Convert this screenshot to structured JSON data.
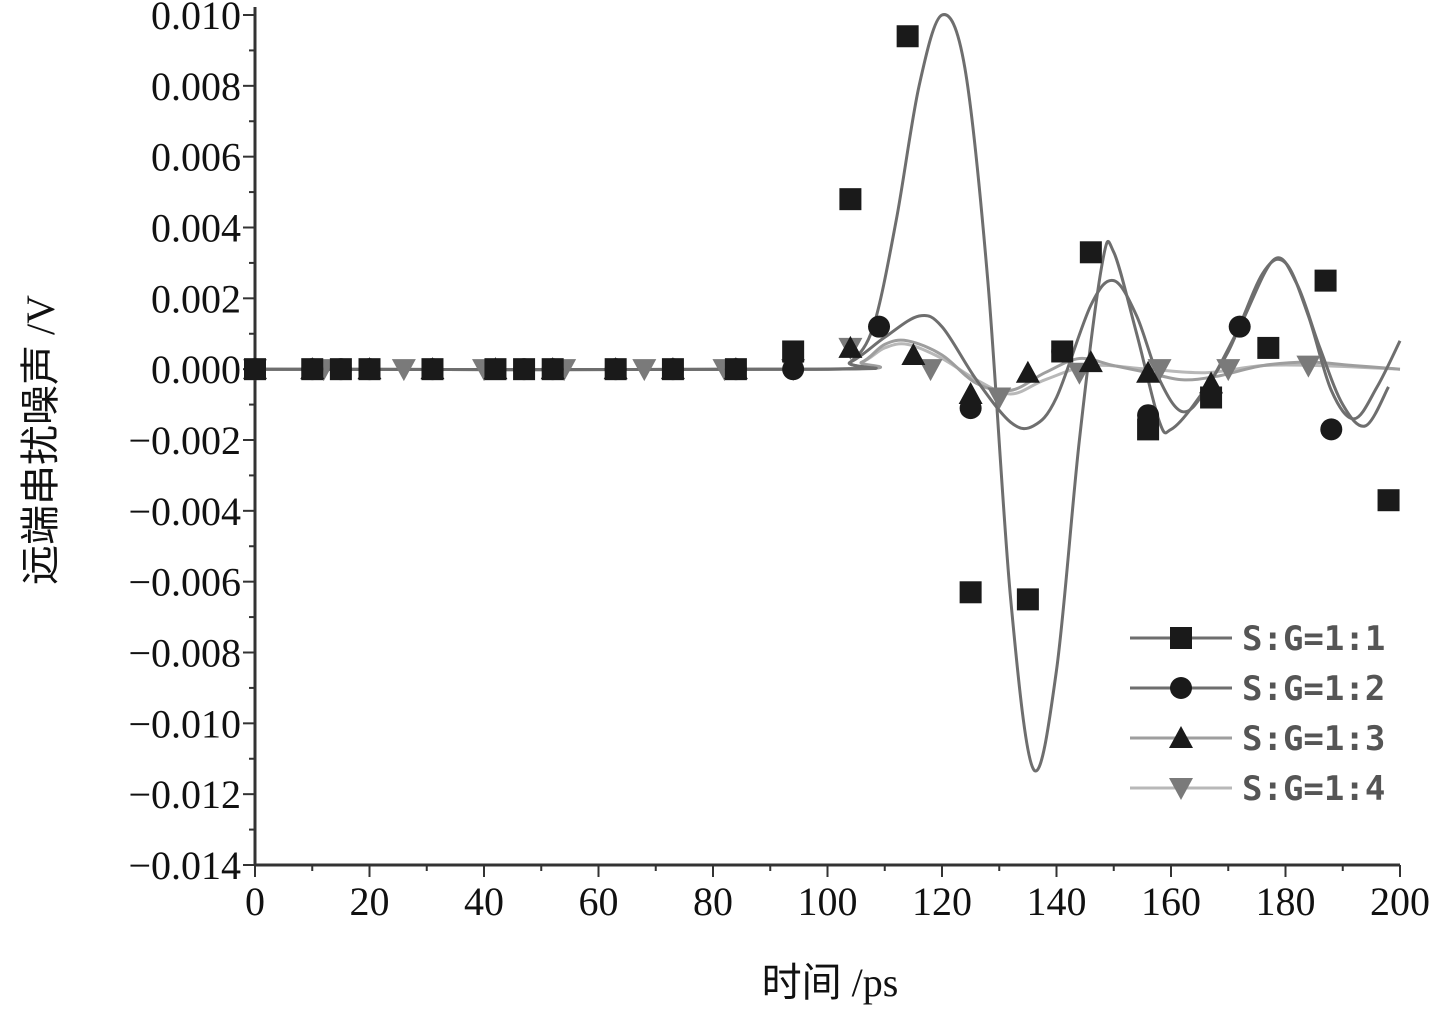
{
  "chart_data": {
    "type": "line",
    "title": "",
    "xlabel": "时间 /ps",
    "ylabel": "远端串扰噪声 /V",
    "xlim": [
      0,
      200
    ],
    "ylim": [
      -0.014,
      0.01
    ],
    "x_ticks": [
      0,
      20,
      40,
      60,
      80,
      100,
      120,
      140,
      160,
      180,
      200
    ],
    "x_tick_labels": [
      "0",
      "20",
      "40",
      "60",
      "80",
      "100",
      "120",
      "140",
      "160",
      "180",
      "200"
    ],
    "y_ticks": [
      0.01,
      0.008,
      0.006,
      0.004,
      0.002,
      0.0,
      -0.002,
      -0.004,
      -0.006,
      -0.008,
      -0.01,
      -0.012,
      -0.014
    ],
    "y_tick_labels": [
      "0.010",
      "0.008",
      "0.006",
      "0.004",
      "0.002",
      "0.000",
      "−0.002",
      "−0.004",
      "−0.006",
      "−0.008",
      "−0.010",
      "−0.012",
      "−0.014"
    ],
    "grid": false,
    "legend_position": "bottom-right",
    "series": [
      {
        "name": "S:G=1:1",
        "marker": "square",
        "color": "#6e6e6e",
        "curve": [
          [
            0,
            0
          ],
          [
            100,
            0
          ],
          [
            104,
            0.0002
          ],
          [
            108,
            0.0012
          ],
          [
            112,
            0.0042
          ],
          [
            116,
            0.008
          ],
          [
            120,
            0.01
          ],
          [
            124,
            0.0085
          ],
          [
            128,
            0.0025
          ],
          [
            132,
            -0.0065
          ],
          [
            136,
            -0.0113
          ],
          [
            140,
            -0.0085
          ],
          [
            144,
            -0.002
          ],
          [
            148,
            0.003
          ],
          [
            150,
            0.0033
          ],
          [
            154,
            0.001
          ],
          [
            158,
            -0.0015
          ],
          [
            160,
            -0.0017
          ],
          [
            164,
            -0.001
          ],
          [
            170,
            0.0005
          ],
          [
            176,
            0.0027
          ],
          [
            180,
            0.003
          ],
          [
            184,
            0.0015
          ],
          [
            188,
            -0.0006
          ],
          [
            192,
            -0.0014
          ],
          [
            196,
            -0.0005
          ],
          [
            200,
            0.0008
          ]
        ],
        "points": [
          [
            0,
            0
          ],
          [
            10,
            0
          ],
          [
            15,
            0
          ],
          [
            20,
            0
          ],
          [
            31,
            0
          ],
          [
            42,
            0
          ],
          [
            47,
            0
          ],
          [
            52,
            0
          ],
          [
            63,
            0
          ],
          [
            73,
            0
          ],
          [
            84,
            0
          ],
          [
            94,
            0.0005
          ],
          [
            104,
            0.0048
          ],
          [
            114,
            0.0094
          ],
          [
            125,
            -0.0063
          ],
          [
            135,
            -0.0065
          ],
          [
            141,
            0.0005
          ],
          [
            146,
            0.0033
          ],
          [
            156,
            -0.0017
          ],
          [
            167,
            -0.0008
          ],
          [
            177,
            0.0006
          ],
          [
            187,
            0.0025
          ],
          [
            198,
            -0.0037
          ]
        ]
      },
      {
        "name": "S:G=1:2",
        "marker": "circle",
        "color": "#6e6e6e",
        "curve": [
          [
            0,
            0
          ],
          [
            98,
            0
          ],
          [
            104,
            0.0002
          ],
          [
            110,
            0.0009
          ],
          [
            116,
            0.0015
          ],
          [
            120,
            0.0012
          ],
          [
            126,
            -0.0003
          ],
          [
            132,
            -0.0015
          ],
          [
            136,
            -0.0016
          ],
          [
            140,
            -0.0008
          ],
          [
            146,
            0.0018
          ],
          [
            150,
            0.0025
          ],
          [
            154,
            0.0015
          ],
          [
            158,
            -0.0003
          ],
          [
            162,
            -0.0012
          ],
          [
            166,
            -0.0006
          ],
          [
            172,
            0.0012
          ],
          [
            178,
            0.0031
          ],
          [
            182,
            0.0024
          ],
          [
            186,
            0.0006
          ],
          [
            190,
            -0.001
          ],
          [
            194,
            -0.0016
          ],
          [
            198,
            -0.0005
          ]
        ],
        "points": [
          [
            0,
            0
          ],
          [
            10,
            0
          ],
          [
            15,
            0
          ],
          [
            20,
            0
          ],
          [
            31,
            0
          ],
          [
            47,
            0
          ],
          [
            52,
            0
          ],
          [
            63,
            0
          ],
          [
            73,
            0
          ],
          [
            84,
            0
          ],
          [
            94,
            0
          ],
          [
            109,
            0.0012
          ],
          [
            125,
            -0.0011
          ],
          [
            141,
            0.0005
          ],
          [
            156,
            -0.0013
          ],
          [
            172,
            0.0012
          ],
          [
            188,
            -0.0017
          ]
        ]
      },
      {
        "name": "S:G=1:3",
        "marker": "triangle-up",
        "color": "#9e9e9e",
        "curve": [
          [
            0,
            0
          ],
          [
            100,
            0
          ],
          [
            106,
            0.0002
          ],
          [
            110,
            0.0007
          ],
          [
            114,
            0.0008
          ],
          [
            120,
            0.0004
          ],
          [
            126,
            -0.0004
          ],
          [
            132,
            -0.0006
          ],
          [
            138,
            -0.0001
          ],
          [
            144,
            0.0003
          ],
          [
            150,
            0.0001
          ],
          [
            156,
            -0.0001
          ],
          [
            162,
            -0.0003
          ],
          [
            168,
            -0.0002
          ],
          [
            176,
            0.0001
          ],
          [
            184,
            0.0002
          ],
          [
            192,
            0.0001
          ],
          [
            200,
            0
          ]
        ],
        "points": [
          [
            0,
            0
          ],
          [
            10,
            0
          ],
          [
            20,
            0
          ],
          [
            31,
            0
          ],
          [
            42,
            0
          ],
          [
            52,
            0
          ],
          [
            63,
            0
          ],
          [
            73,
            0
          ],
          [
            84,
            0
          ],
          [
            104,
            0.0006
          ],
          [
            115,
            0.0004
          ],
          [
            125,
            -0.0007
          ],
          [
            135,
            -0.0001
          ],
          [
            146,
            0.0002
          ],
          [
            156,
            -0.0001
          ],
          [
            167,
            -0.0004
          ]
        ]
      },
      {
        "name": "S:G=1:4",
        "marker": "triangle-down",
        "color": "#b8b8b8",
        "curve": [
          [
            0,
            0
          ],
          [
            100,
            0
          ],
          [
            106,
            0.0002
          ],
          [
            110,
            0.0006
          ],
          [
            114,
            0.0007
          ],
          [
            120,
            0.0003
          ],
          [
            126,
            -0.0003
          ],
          [
            132,
            -0.0007
          ],
          [
            138,
            -0.0003
          ],
          [
            146,
            0.0001
          ],
          [
            156,
            0
          ],
          [
            166,
            -0.0001
          ],
          [
            176,
            0.0001
          ],
          [
            186,
            0.0001
          ],
          [
            200,
            0
          ]
        ],
        "points": [
          [
            0,
            0
          ],
          [
            12,
            0
          ],
          [
            26,
            0
          ],
          [
            40,
            0
          ],
          [
            54,
            0
          ],
          [
            68,
            0
          ],
          [
            82,
            0
          ],
          [
            94,
            0
          ],
          [
            104,
            0.0006
          ],
          [
            118,
            0
          ],
          [
            130,
            -0.0008
          ],
          [
            144,
            -0.0001
          ],
          [
            158,
            0
          ],
          [
            170,
            0
          ],
          [
            184,
            0.0001
          ]
        ]
      }
    ]
  }
}
